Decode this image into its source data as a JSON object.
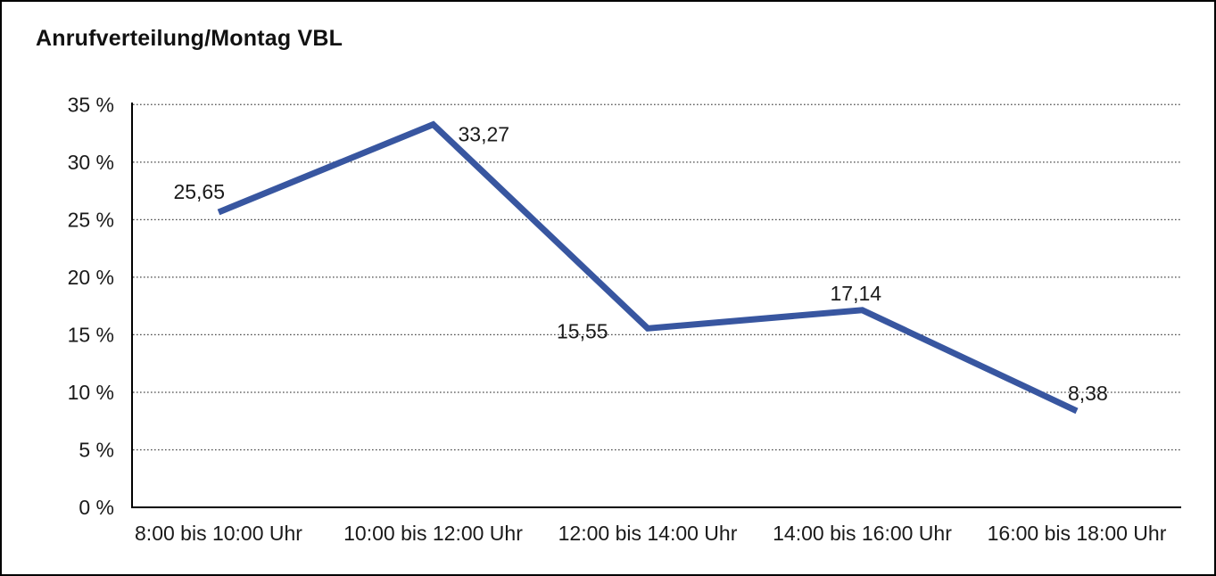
{
  "title": "Anrufverteilung/Montag VBL",
  "chart_data": {
    "type": "line",
    "title": "Anrufverteilung/Montag VBL",
    "categories": [
      "8:00 bis 10:00 Uhr",
      "10:00 bis 12:00 Uhr",
      "12:00 bis 14:00 Uhr",
      "14:00 bis 16:00 Uhr",
      "16:00 bis 18:00 Uhr"
    ],
    "values": [
      25.65,
      33.27,
      15.55,
      17.14,
      8.38
    ],
    "value_labels": [
      "25,65",
      "33,27",
      "15,55",
      "17,14",
      "8,38"
    ],
    "xlabel": "",
    "ylabel": "",
    "ylim": [
      0,
      35
    ],
    "ytick_step": 5,
    "ytick_labels": [
      "0 %",
      "5 %",
      "10 %",
      "15 %",
      "20 %",
      "25 %",
      "30 %",
      "35 %"
    ],
    "grid": "horizontal-dotted",
    "legend": "none",
    "line_color": "#3856A0",
    "axis_color": "#000000",
    "gridline_color": "#4a4a4a",
    "text_color": "#1a1a1a",
    "background_color": "#ffffff"
  }
}
